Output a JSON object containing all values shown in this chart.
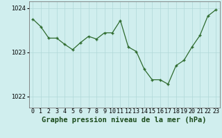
{
  "x": [
    0,
    1,
    2,
    3,
    4,
    5,
    6,
    7,
    8,
    9,
    10,
    11,
    12,
    13,
    14,
    15,
    16,
    17,
    18,
    19,
    20,
    21,
    22,
    23
  ],
  "y": [
    1023.75,
    1023.58,
    1023.32,
    1023.32,
    1023.18,
    1023.06,
    1023.22,
    1023.36,
    1023.3,
    1023.44,
    1023.44,
    1023.72,
    1023.12,
    1023.02,
    1022.62,
    1022.38,
    1022.38,
    1022.28,
    1022.7,
    1022.82,
    1023.12,
    1023.38,
    1023.82,
    1023.96
  ],
  "line_color": "#2d6a2d",
  "marker_color": "#2d6a2d",
  "bg_color": "#d0eeee",
  "grid_color": "#b0d8d8",
  "title": "Graphe pression niveau de la mer (hPa)",
  "ylim": [
    1021.75,
    1024.15
  ],
  "yticks": [
    1022,
    1023,
    1024
  ],
  "xlim": [
    -0.5,
    23.5
  ],
  "title_fontsize": 7.5,
  "tick_fontsize": 6.0
}
